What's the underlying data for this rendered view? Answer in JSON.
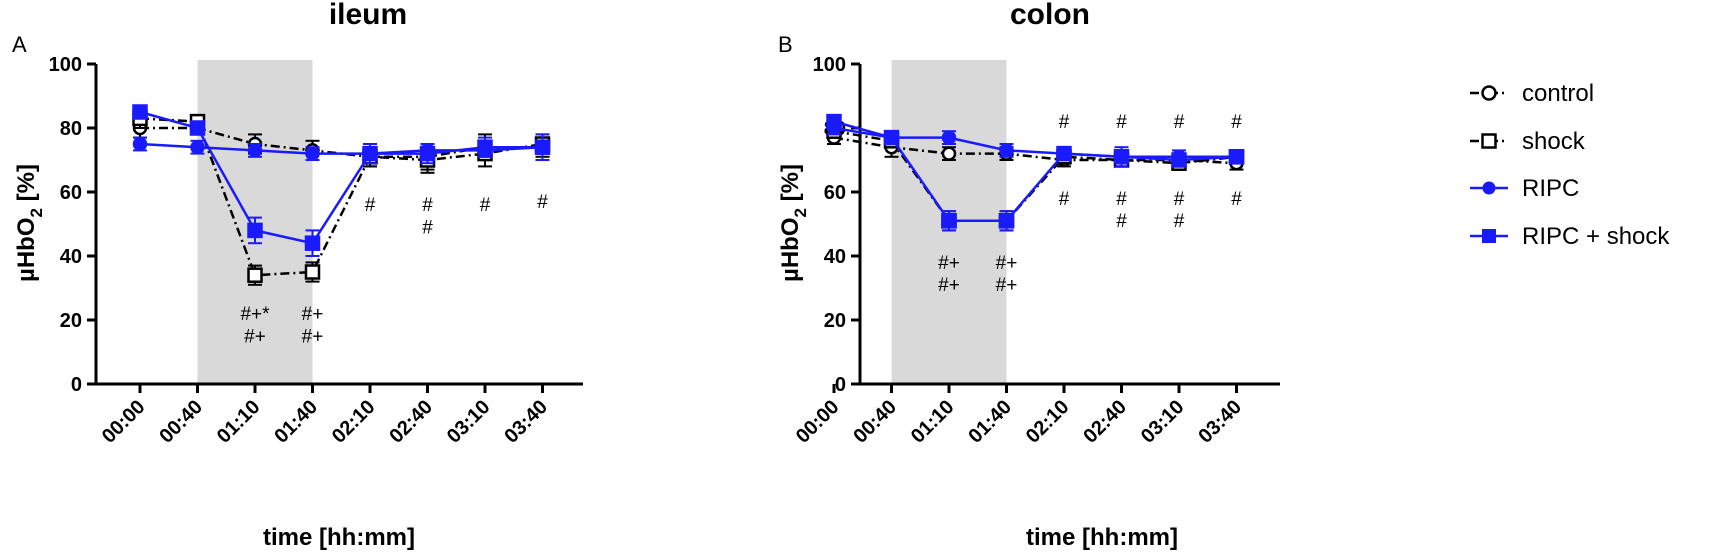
{
  "chart_data": [
    {
      "type": "line",
      "panel_letter": "A",
      "title": "ileum",
      "xlabel": "time [hh:mm]",
      "ylabel_main": "µHbO",
      "ylabel_sub": "2",
      "ylabel_unit": " [%]",
      "categories": [
        "00:00",
        "00:40",
        "01:10",
        "01:40",
        "02:10",
        "02:40",
        "03:10",
        "03:40"
      ],
      "ylim": [
        0,
        100
      ],
      "yticks": [
        0,
        20,
        40,
        60,
        80,
        100
      ],
      "shaded_region": [
        "00:40",
        "01:40"
      ],
      "series": [
        {
          "name": "control",
          "values": [
            80,
            80,
            75,
            73,
            71,
            71,
            74,
            74
          ],
          "errors": [
            3,
            2,
            3,
            3,
            3,
            4,
            4,
            3
          ]
        },
        {
          "name": "shock",
          "values": [
            83,
            82,
            34,
            35,
            71,
            70,
            72,
            75
          ],
          "errors": [
            3,
            2,
            3,
            3,
            3,
            4,
            4,
            3
          ]
        },
        {
          "name": "RIPC",
          "values": [
            75,
            74,
            73,
            72,
            72,
            73,
            73,
            74
          ],
          "errors": [
            2,
            2,
            2,
            2,
            2,
            2,
            2,
            2
          ]
        },
        {
          "name": "RIPC + shock",
          "values": [
            85,
            80,
            48,
            44,
            72,
            72,
            74,
            74
          ],
          "errors": [
            2,
            2,
            4,
            4,
            3,
            3,
            3,
            4
          ]
        }
      ],
      "annotations": [
        {
          "x": "01:10",
          "y": 20,
          "text": "#+*"
        },
        {
          "x": "01:10",
          "y": 13,
          "text": "#+"
        },
        {
          "x": "01:40",
          "y": 20,
          "text": "#+"
        },
        {
          "x": "01:40",
          "y": 13,
          "text": "#+"
        },
        {
          "x": "02:10",
          "y": 54,
          "text": "#"
        },
        {
          "x": "02:40",
          "y": 54,
          "text": "#"
        },
        {
          "x": "02:40",
          "y": 47,
          "text": "#"
        },
        {
          "x": "03:10",
          "y": 54,
          "text": "#"
        },
        {
          "x": "03:40",
          "y": 55,
          "text": "#"
        }
      ]
    },
    {
      "type": "line",
      "panel_letter": "B",
      "title": "colon",
      "xlabel": "time [hh:mm]",
      "ylabel_main": "µHbO",
      "ylabel_sub": "2",
      "ylabel_unit": " [%]",
      "categories": [
        "00:00",
        "00:40",
        "01:10",
        "01:40",
        "02:10",
        "02:40",
        "03:10",
        "03:40"
      ],
      "ylim": [
        0,
        100
      ],
      "yticks": [
        0,
        20,
        40,
        60,
        80,
        100
      ],
      "shaded_region": [
        "00:40",
        "01:40"
      ],
      "series": [
        {
          "name": "control",
          "values": [
            77,
            74,
            72,
            72,
            70,
            70,
            70,
            69
          ],
          "errors": [
            2,
            3,
            2,
            2,
            2,
            2,
            2,
            2
          ]
        },
        {
          "name": "shock",
          "values": [
            79,
            76,
            51,
            51,
            71,
            70,
            69,
            71
          ],
          "errors": [
            2,
            2,
            3,
            3,
            2,
            2,
            2,
            2
          ]
        },
        {
          "name": "RIPC",
          "values": [
            80,
            77,
            77,
            73,
            72,
            71,
            71,
            71
          ],
          "errors": [
            2,
            2,
            2,
            2,
            2,
            2,
            2,
            2
          ]
        },
        {
          "name": "RIPC + shock",
          "values": [
            82,
            77,
            51,
            51,
            72,
            71,
            70,
            71
          ],
          "errors": [
            2,
            2,
            3,
            3,
            2,
            3,
            2,
            2
          ]
        }
      ],
      "annotations": [
        {
          "x": "02:10",
          "y": 80,
          "text": "#"
        },
        {
          "x": "02:40",
          "y": 80,
          "text": "#"
        },
        {
          "x": "03:10",
          "y": 80,
          "text": "#"
        },
        {
          "x": "03:40",
          "y": 80,
          "text": "#"
        },
        {
          "x": "02:10",
          "y": 56,
          "text": "#"
        },
        {
          "x": "02:40",
          "y": 56,
          "text": "#"
        },
        {
          "x": "02:40",
          "y": 49,
          "text": "#"
        },
        {
          "x": "03:10",
          "y": 56,
          "text": "#"
        },
        {
          "x": "03:10",
          "y": 49,
          "text": "#"
        },
        {
          "x": "03:40",
          "y": 56,
          "text": "#"
        },
        {
          "x": "01:10",
          "y": 36,
          "text": "#+"
        },
        {
          "x": "01:10",
          "y": 29,
          "text": "#+"
        },
        {
          "x": "01:40",
          "y": 36,
          "text": "#+"
        },
        {
          "x": "01:40",
          "y": 29,
          "text": "#+"
        }
      ]
    }
  ],
  "legend": {
    "items": [
      {
        "label": "control",
        "marker": "open-circle",
        "color": "#000000",
        "dash": "dash-dot"
      },
      {
        "label": "shock",
        "marker": "open-square",
        "color": "#000000",
        "dash": "dash-dot"
      },
      {
        "label": "RIPC",
        "marker": "filled-circle",
        "color": "#1a1aff",
        "dash": "solid"
      },
      {
        "label": "RIPC + shock",
        "marker": "filled-square",
        "color": "#1a1aff",
        "dash": "solid"
      }
    ]
  },
  "colors": {
    "control": "#000000",
    "shock": "#000000",
    "blue": "#1a1aff",
    "shading": "#d9d9d9"
  }
}
